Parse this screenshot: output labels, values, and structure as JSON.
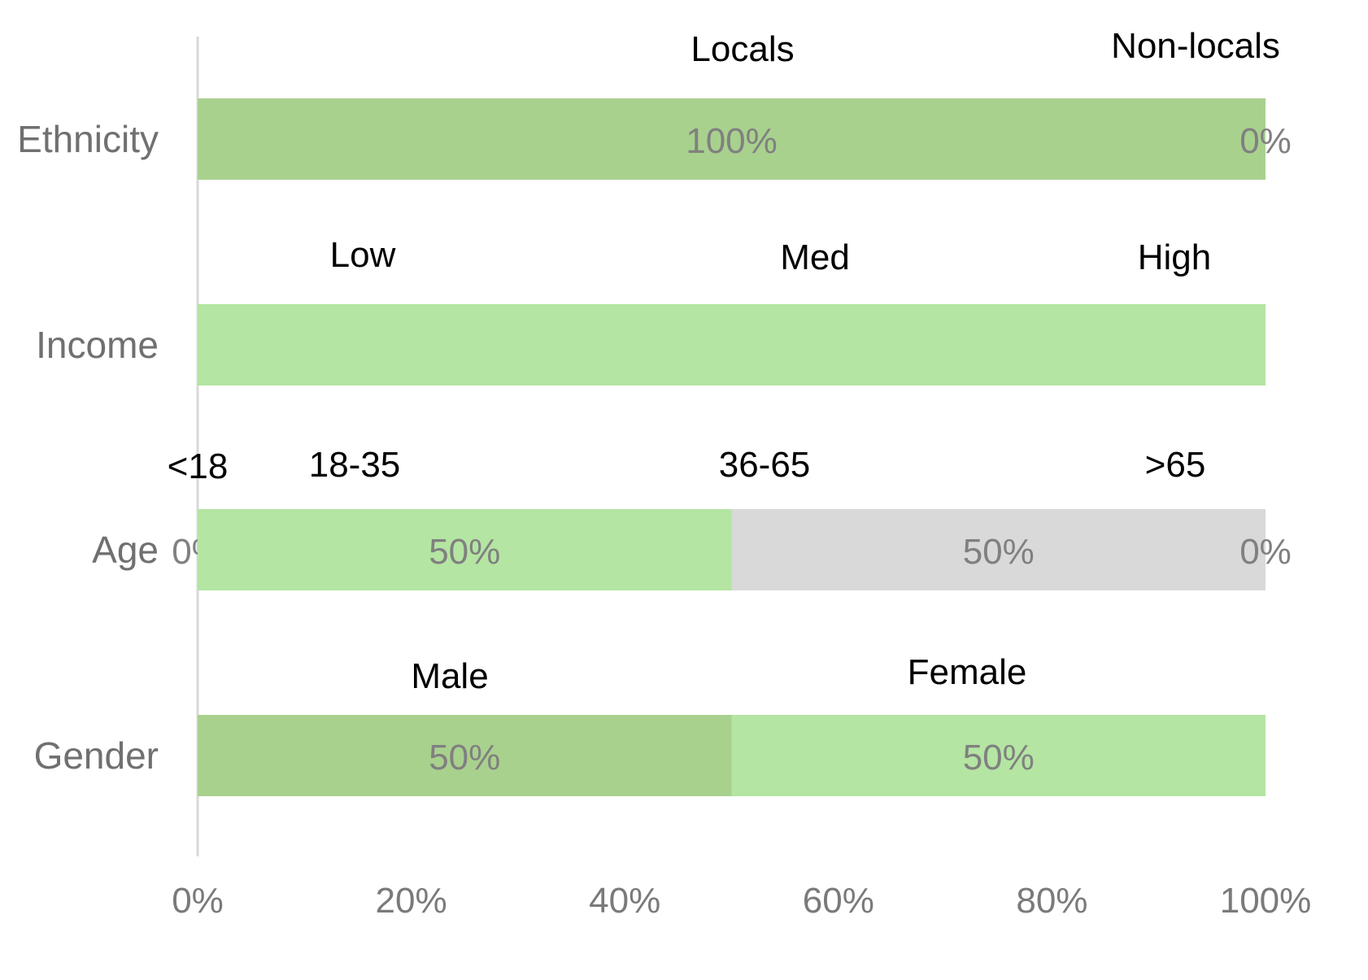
{
  "chart_data": {
    "type": "bar",
    "orientation": "horizontal",
    "stacked": "100%",
    "categories": [
      "Ethnicity",
      "Income",
      "Age",
      "Gender"
    ],
    "rows": [
      {
        "category": "Ethnicity",
        "segments": [
          {
            "name": "Locals",
            "value": 100,
            "value_label": "100%",
            "color": "#a9d18e"
          },
          {
            "name": "Non-locals",
            "value": 0,
            "value_label": "0%",
            "color": "#a9d18e"
          }
        ]
      },
      {
        "category": "Income",
        "segments": [
          {
            "name": "Low",
            "value": null,
            "value_label": "",
            "color": "#b4e5a2"
          },
          {
            "name": "Med",
            "value": null,
            "value_label": "",
            "color": "#b4e5a2"
          },
          {
            "name": "High",
            "value": null,
            "value_label": "",
            "color": "#b4e5a2"
          }
        ]
      },
      {
        "category": "Age",
        "segments": [
          {
            "name": "<18",
            "value": 0,
            "value_label": "0%",
            "color": "#b4e5a2"
          },
          {
            "name": "18-35",
            "value": 50,
            "value_label": "50%",
            "color": "#b4e5a2"
          },
          {
            "name": "36-65",
            "value": 50,
            "value_label": "50%",
            "color": "#d9d9d9"
          },
          {
            "name": ">65",
            "value": 0,
            "value_label": "0%",
            "color": "#d9d9d9"
          }
        ]
      },
      {
        "category": "Gender",
        "segments": [
          {
            "name": "Male",
            "value": 50,
            "value_label": "50%",
            "color": "#a9d18e"
          },
          {
            "name": "Female",
            "value": 50,
            "value_label": "50%",
            "color": "#b4e5a2"
          }
        ]
      }
    ],
    "xlim": [
      0,
      100
    ],
    "xticks": [
      0,
      20,
      40,
      60,
      80,
      100
    ],
    "xtick_labels": [
      "0%",
      "20%",
      "40%",
      "60%",
      "80%",
      "100%"
    ],
    "grid": false,
    "legend": "none",
    "axis_color": "#d9d9d9"
  }
}
